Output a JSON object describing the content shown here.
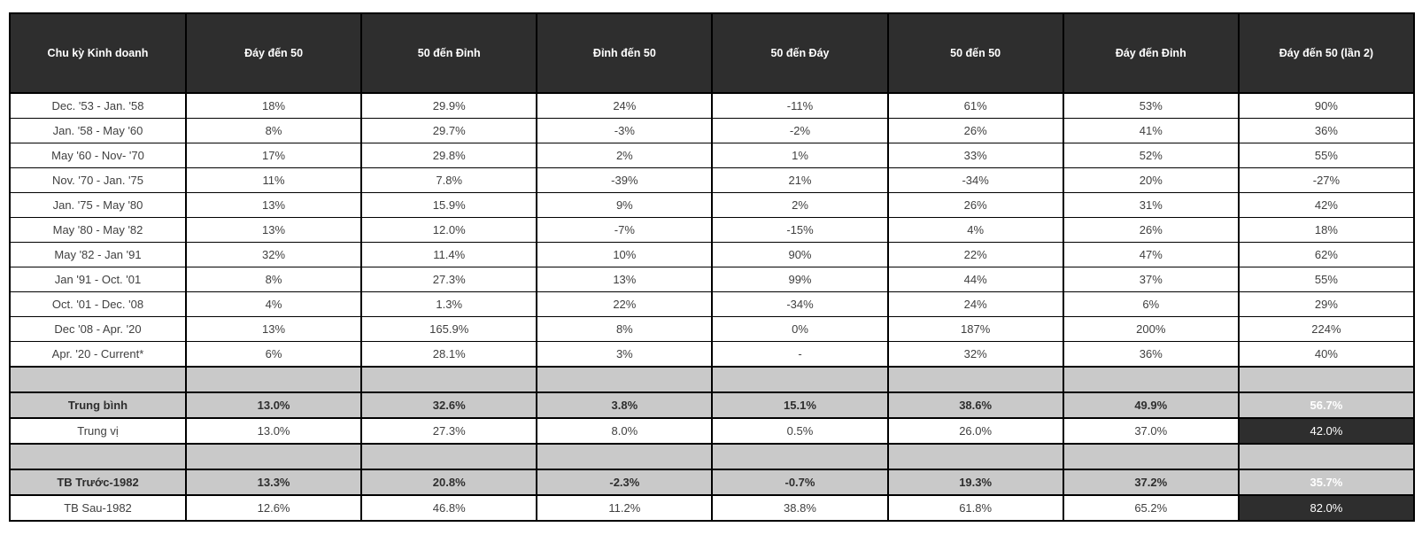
{
  "colors": {
    "header_bg": "#2e2e2e",
    "header_text": "#ffffff",
    "spacer_bg": "#c9c9c9",
    "summary_bg": "#c9c9c9",
    "dark_cell_bg": "#2e2e2e",
    "dark_cell_text": "#ffffff",
    "border": "#000000",
    "body_text": "#404040"
  },
  "chart_data": {
    "type": "table",
    "columns": [
      "Chu kỳ Kinh doanh",
      "Đáy đến 50",
      "50 đến Đỉnh",
      "Đỉnh đến 50",
      "50 đến Đáy",
      "50 đến 50",
      "Đáy đến Đỉnh",
      "Đáy đến 50 (lần 2)"
    ],
    "rows": [
      {
        "style": "data",
        "cells": [
          "Dec. '53 - Jan. '58",
          "18%",
          "29.9%",
          "24%",
          "-11%",
          "61%",
          "53%",
          "90%"
        ]
      },
      {
        "style": "data",
        "cells": [
          "Jan. '58 - May '60",
          "8%",
          "29.7%",
          "-3%",
          "-2%",
          "26%",
          "41%",
          "36%"
        ]
      },
      {
        "style": "data",
        "cells": [
          "May '60 - Nov- '70",
          "17%",
          "29.8%",
          "2%",
          "1%",
          "33%",
          "52%",
          "55%"
        ]
      },
      {
        "style": "data",
        "cells": [
          "Nov. '70 - Jan. '75",
          "11%",
          "7.8%",
          "-39%",
          "21%",
          "-34%",
          "20%",
          "-27%"
        ]
      },
      {
        "style": "data",
        "cells": [
          "Jan. '75 - May '80",
          "13%",
          "15.9%",
          "9%",
          "2%",
          "26%",
          "31%",
          "42%"
        ]
      },
      {
        "style": "data",
        "cells": [
          "May '80 - May '82",
          "13%",
          "12.0%",
          "-7%",
          "-15%",
          "4%",
          "26%",
          "18%"
        ]
      },
      {
        "style": "data",
        "cells": [
          "May '82 - Jan '91",
          "32%",
          "11.4%",
          "10%",
          "90%",
          "22%",
          "47%",
          "62%"
        ]
      },
      {
        "style": "data",
        "cells": [
          "Jan '91 - Oct. '01",
          "8%",
          "27.3%",
          "13%",
          "99%",
          "44%",
          "37%",
          "55%"
        ]
      },
      {
        "style": "data",
        "cells": [
          "Oct. '01 - Dec. '08",
          "4%",
          "1.3%",
          "22%",
          "-34%",
          "24%",
          "6%",
          "29%"
        ]
      },
      {
        "style": "data",
        "cells": [
          "Dec '08 - Apr. '20",
          "13%",
          "165.9%",
          "8%",
          "0%",
          "187%",
          "200%",
          "224%"
        ]
      },
      {
        "style": "data",
        "cells": [
          "Apr. '20 - Current*",
          "6%",
          "28.1%",
          "3%",
          "-",
          "32%",
          "36%",
          "40%"
        ]
      },
      {
        "style": "spacer",
        "cells": [
          "",
          "",
          "",
          "",
          "",
          "",
          "",
          ""
        ]
      },
      {
        "style": "avg",
        "cells": [
          "Trung bình",
          "13.0%",
          "32.6%",
          "3.8%",
          "15.1%",
          "38.6%",
          "49.9%",
          "56.7%"
        ]
      },
      {
        "style": "median",
        "cells": [
          "Trung vị",
          "13.0%",
          "27.3%",
          "8.0%",
          "0.5%",
          "26.0%",
          "37.0%",
          "42.0%"
        ]
      },
      {
        "style": "spacer",
        "cells": [
          "",
          "",
          "",
          "",
          "",
          "",
          "",
          ""
        ]
      },
      {
        "style": "avg",
        "cells": [
          "TB Trước-1982",
          "13.3%",
          "20.8%",
          "-2.3%",
          "-0.7%",
          "19.3%",
          "37.2%",
          "35.7%"
        ]
      },
      {
        "style": "median",
        "cells": [
          "TB Sau-1982",
          "12.6%",
          "46.8%",
          "11.2%",
          "38.8%",
          "61.8%",
          "65.2%",
          "82.0%"
        ]
      }
    ]
  }
}
